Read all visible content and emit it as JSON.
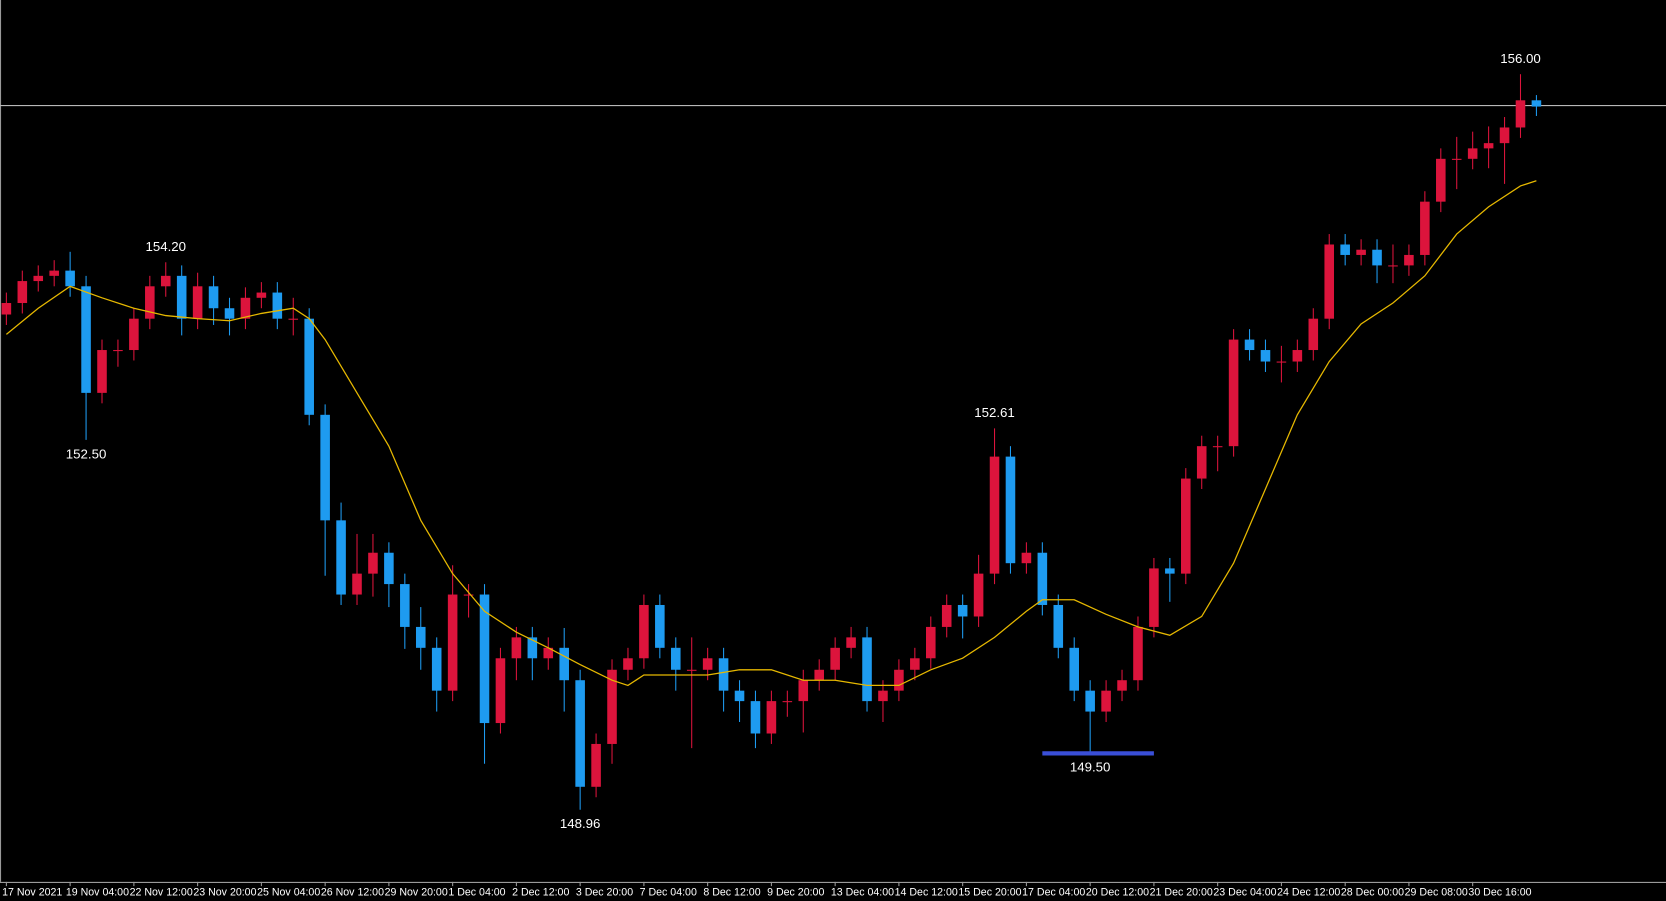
{
  "chart_data": {
    "type": "candlestick",
    "open": [
      153.7,
      153.81,
      154.02,
      154.07,
      154.12,
      153.97,
      152.95,
      153.36,
      153.36,
      153.66,
      153.97,
      154.07,
      153.66,
      153.97,
      153.76,
      153.66,
      153.86,
      153.91,
      153.66,
      153.66,
      152.74,
      151.73,
      151.02,
      151.22,
      151.42,
      151.12,
      150.71,
      150.51,
      150.1,
      151.02,
      151.02,
      149.79,
      150.41,
      150.61,
      150.41,
      150.51,
      150.2,
      149.18,
      149.59,
      150.3,
      150.41,
      150.92,
      150.51,
      150.3,
      150.3,
      150.41,
      150.1,
      150.0,
      149.69,
      150.0,
      150.0,
      150.2,
      150.3,
      150.51,
      150.61,
      150.0,
      150.1,
      150.3,
      150.41,
      150.71,
      150.92,
      150.81,
      151.22,
      152.34,
      151.32,
      151.42,
      150.92,
      150.51,
      150.1,
      149.9,
      150.1,
      150.2,
      150.71,
      151.27,
      151.22,
      152.13,
      152.44,
      152.44,
      153.46,
      153.36,
      153.25,
      153.25,
      153.36,
      153.66,
      154.37,
      154.27,
      154.32,
      154.17,
      154.17,
      154.27,
      154.78,
      155.19,
      155.19,
      155.29,
      155.34,
      155.49,
      155.75
    ],
    "high": [
      153.91,
      154.12,
      154.17,
      154.22,
      154.3,
      154.07,
      153.46,
      153.46,
      153.76,
      154.07,
      154.2,
      154.17,
      154.1,
      154.07,
      153.86,
      153.96,
      154.01,
      154.01,
      153.86,
      153.76,
      152.84,
      151.9,
      151.6,
      151.6,
      151.52,
      151.22,
      150.9,
      150.61,
      151.3,
      151.12,
      151.12,
      150.51,
      150.71,
      150.71,
      150.61,
      150.7,
      150.3,
      149.69,
      150.4,
      150.51,
      151.02,
      151.02,
      150.61,
      150.61,
      150.51,
      150.51,
      150.2,
      150.1,
      150.1,
      150.1,
      150.3,
      150.4,
      150.61,
      150.71,
      150.71,
      150.2,
      150.4,
      150.51,
      150.81,
      151.02,
      151.02,
      151.4,
      152.61,
      152.44,
      151.52,
      151.52,
      151.02,
      150.61,
      150.2,
      150.2,
      150.3,
      150.81,
      151.37,
      151.37,
      152.23,
      152.54,
      152.54,
      153.56,
      153.56,
      153.46,
      153.4,
      153.46,
      153.76,
      154.47,
      154.47,
      154.42,
      154.42,
      154.37,
      154.37,
      154.88,
      155.29,
      155.4,
      155.45,
      155.5,
      155.59,
      156.0,
      155.8
    ],
    "low": [
      153.6,
      153.71,
      153.92,
      153.97,
      153.87,
      152.5,
      152.85,
      153.2,
      153.26,
      153.56,
      153.87,
      153.5,
      153.56,
      153.6,
      153.5,
      153.56,
      153.76,
      153.56,
      153.5,
      152.64,
      151.2,
      150.92,
      150.92,
      151.0,
      150.9,
      150.5,
      150.3,
      149.9,
      150.0,
      150.8,
      149.4,
      149.69,
      150.2,
      150.2,
      150.3,
      149.9,
      148.96,
      149.08,
      149.4,
      150.2,
      150.31,
      150.41,
      150.1,
      149.55,
      150.2,
      149.9,
      149.8,
      149.55,
      149.59,
      149.85,
      149.7,
      150.1,
      150.2,
      150.41,
      149.9,
      149.8,
      150.0,
      150.2,
      150.31,
      150.61,
      150.6,
      150.71,
      151.12,
      151.22,
      151.22,
      150.82,
      150.41,
      150.0,
      149.5,
      149.8,
      150.0,
      150.1,
      150.61,
      150.95,
      151.12,
      152.03,
      152.2,
      152.34,
      153.26,
      153.15,
      153.05,
      153.15,
      153.26,
      153.56,
      154.17,
      154.17,
      154.0,
      154.0,
      154.07,
      154.17,
      154.68,
      154.9,
      155.09,
      155.1,
      154.95,
      155.39,
      155.6
    ],
    "close": [
      153.81,
      154.02,
      154.07,
      154.12,
      153.97,
      152.95,
      153.36,
      153.36,
      153.66,
      153.97,
      154.07,
      153.66,
      153.97,
      153.76,
      153.66,
      153.86,
      153.91,
      153.66,
      153.66,
      152.74,
      151.73,
      151.02,
      151.22,
      151.42,
      151.12,
      150.71,
      150.51,
      150.1,
      151.02,
      151.02,
      149.79,
      150.41,
      150.61,
      150.41,
      150.51,
      150.2,
      149.18,
      149.59,
      150.3,
      150.41,
      150.92,
      150.51,
      150.3,
      150.3,
      150.41,
      150.1,
      150.0,
      149.69,
      150.0,
      150.0,
      150.2,
      150.3,
      150.51,
      150.61,
      150.0,
      150.1,
      150.3,
      150.41,
      150.71,
      150.92,
      150.81,
      151.22,
      152.34,
      151.32,
      151.42,
      150.92,
      150.51,
      150.1,
      149.9,
      150.1,
      150.2,
      150.71,
      151.27,
      151.22,
      152.13,
      152.44,
      152.44,
      153.46,
      153.36,
      153.25,
      153.25,
      153.36,
      153.66,
      154.37,
      154.27,
      154.32,
      154.17,
      154.17,
      154.27,
      154.78,
      155.19,
      155.19,
      155.29,
      155.34,
      155.49,
      155.75,
      155.69
    ],
    "up_color": "#dc143c",
    "down_color": "#1e9bf0",
    "xlim": [
      -0.4,
      104.13
    ],
    "ylim": [
      148.27,
      156.71
    ],
    "xticks": [
      {
        "value": 0,
        "label": "17 Nov 2021"
      },
      {
        "value": 4,
        "label": "19 Nov 04:00"
      },
      {
        "value": 8,
        "label": "22 Nov 12:00"
      },
      {
        "value": 12,
        "label": "23 Nov 20:00"
      },
      {
        "value": 16,
        "label": "25 Nov 04:00"
      },
      {
        "value": 20,
        "label": "26 Nov 12:00"
      },
      {
        "value": 24,
        "label": "29 Nov 20:00"
      },
      {
        "value": 28,
        "label": "1 Dec 04:00"
      },
      {
        "value": 32,
        "label": "2 Dec 12:00"
      },
      {
        "value": 36,
        "label": "3 Dec 20:00"
      },
      {
        "value": 40,
        "label": "7 Dec 04:00"
      },
      {
        "value": 44,
        "label": "8 Dec 12:00"
      },
      {
        "value": 48,
        "label": "9 Dec 20:00"
      },
      {
        "value": 52,
        "label": "13 Dec 04:00"
      },
      {
        "value": 56,
        "label": "14 Dec 12:00"
      },
      {
        "value": 60,
        "label": "15 Dec 20:00"
      },
      {
        "value": 64,
        "label": "17 Dec 04:00"
      },
      {
        "value": 68,
        "label": "20 Dec 12:00"
      },
      {
        "value": 72,
        "label": "21 Dec 20:00"
      },
      {
        "value": 76,
        "label": "23 Dec 04:00"
      },
      {
        "value": 80,
        "label": "24 Dec 12:00"
      },
      {
        "value": 84,
        "label": "28 Dec 00:00"
      },
      {
        "value": 88,
        "label": "29 Dec 08:00"
      },
      {
        "value": 92,
        "label": "30 Dec 16:00"
      }
    ],
    "ma": {
      "color": "#e6b800",
      "x": [
        0,
        2,
        4,
        6,
        8,
        10,
        12,
        14,
        16,
        18,
        19,
        20,
        22,
        24,
        26,
        28,
        30,
        32,
        34,
        36,
        38,
        39,
        40,
        42,
        44,
        46,
        48,
        50,
        52,
        54,
        56,
        58,
        60,
        62,
        64,
        65,
        67,
        69,
        71,
        73,
        75,
        77,
        79,
        81,
        83,
        85,
        87,
        89,
        91,
        93,
        95,
        96
      ],
      "values": [
        153.51,
        153.76,
        153.97,
        153.86,
        153.76,
        153.69,
        153.66,
        153.64,
        153.71,
        153.76,
        153.66,
        153.46,
        152.95,
        152.44,
        151.73,
        151.22,
        150.86,
        150.66,
        150.51,
        150.35,
        150.2,
        150.15,
        150.25,
        150.25,
        150.25,
        150.3,
        150.3,
        150.2,
        150.2,
        150.15,
        150.15,
        150.3,
        150.41,
        150.61,
        150.86,
        150.97,
        150.97,
        150.83,
        150.71,
        150.63,
        150.81,
        151.32,
        152.03,
        152.74,
        153.25,
        153.61,
        153.81,
        154.07,
        154.47,
        154.73,
        154.93,
        154.98
      ]
    },
    "hline": {
      "value": 155.7,
      "color": "#b8b8b8"
    },
    "support_line": {
      "value": 149.5,
      "color": "#3a4fd8"
    },
    "annotations": [
      {
        "value": 154.2,
        "label": "154.20"
      },
      {
        "value": 152.5,
        "label": "152.50"
      },
      {
        "value": 148.96,
        "label": "148.96"
      },
      {
        "value": 152.61,
        "label": "152.61"
      },
      {
        "value": 149.5,
        "label": "149.50"
      },
      {
        "value": 156.0,
        "label": "156.00"
      }
    ]
  }
}
